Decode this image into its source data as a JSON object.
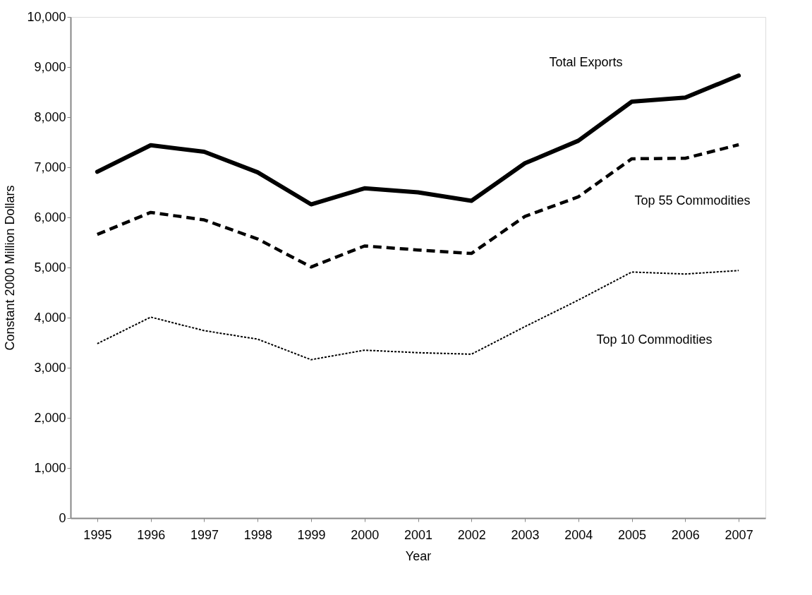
{
  "chart_data": {
    "type": "line",
    "xlabel": "Year",
    "ylabel": "Constant 2000 Million Dollars",
    "categories": [
      "1995",
      "1996",
      "1997",
      "1998",
      "1999",
      "2000",
      "2001",
      "2002",
      "2003",
      "2004",
      "2005",
      "2006",
      "2007"
    ],
    "series": [
      {
        "name": "Total Exports",
        "color": "#000000",
        "line_style": "solid",
        "values": [
          6910,
          7440,
          7310,
          6900,
          6260,
          6580,
          6500,
          6330,
          7080,
          7530,
          8310,
          8390,
          8830
        ]
      },
      {
        "name": "Top 55 Commodities",
        "color": "#000000",
        "line_style": "dashed",
        "values": [
          5660,
          6100,
          5950,
          5570,
          5010,
          5430,
          5350,
          5280,
          6020,
          6410,
          7170,
          7180,
          7450
        ]
      },
      {
        "name": "Top 10 Commodities",
        "color": "#000000",
        "line_style": "dotted",
        "values": [
          3480,
          4010,
          3740,
          3570,
          3160,
          3350,
          3300,
          3270,
          3820,
          4350,
          4910,
          4870,
          4940
        ]
      }
    ],
    "ylim": [
      0,
      10000
    ],
    "yticks": [
      0,
      {
        "value": 1000,
        "label": "1,000"
      },
      {
        "value": 2000,
        "label": "2,000"
      },
      {
        "value": 3000,
        "label": "3,000"
      },
      {
        "value": 4000,
        "label": "4,000"
      },
      {
        "value": 5000,
        "label": "5,000"
      },
      {
        "value": 6000,
        "label": "6,000"
      },
      {
        "value": 7000,
        "label": "7,000"
      },
      {
        "value": 8000,
        "label": "8,000"
      },
      {
        "value": 9000,
        "label": "9,000"
      },
      {
        "value": 10000,
        "label": "10,000"
      }
    ],
    "grid": false,
    "legend": false,
    "marker": "none"
  }
}
